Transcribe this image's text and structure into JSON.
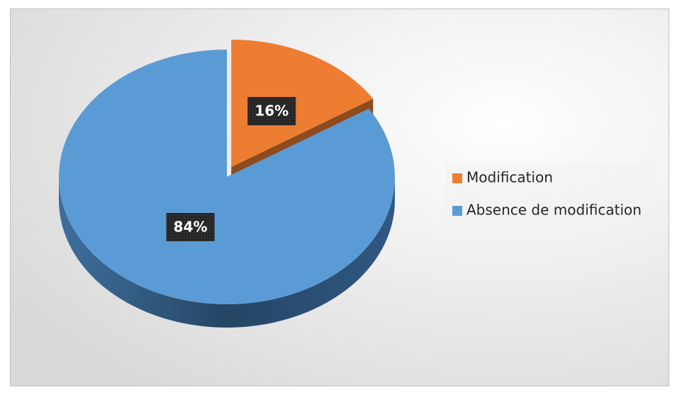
{
  "chart_data": {
    "type": "pie",
    "categories": [
      "Modification",
      "Absence de modification"
    ],
    "values": [
      16,
      84
    ],
    "value_labels": [
      "16%",
      "84%"
    ],
    "colors": [
      "#ed7d31",
      "#5b9bd5"
    ],
    "explode": [
      true,
      false
    ],
    "legend": "right"
  }
}
